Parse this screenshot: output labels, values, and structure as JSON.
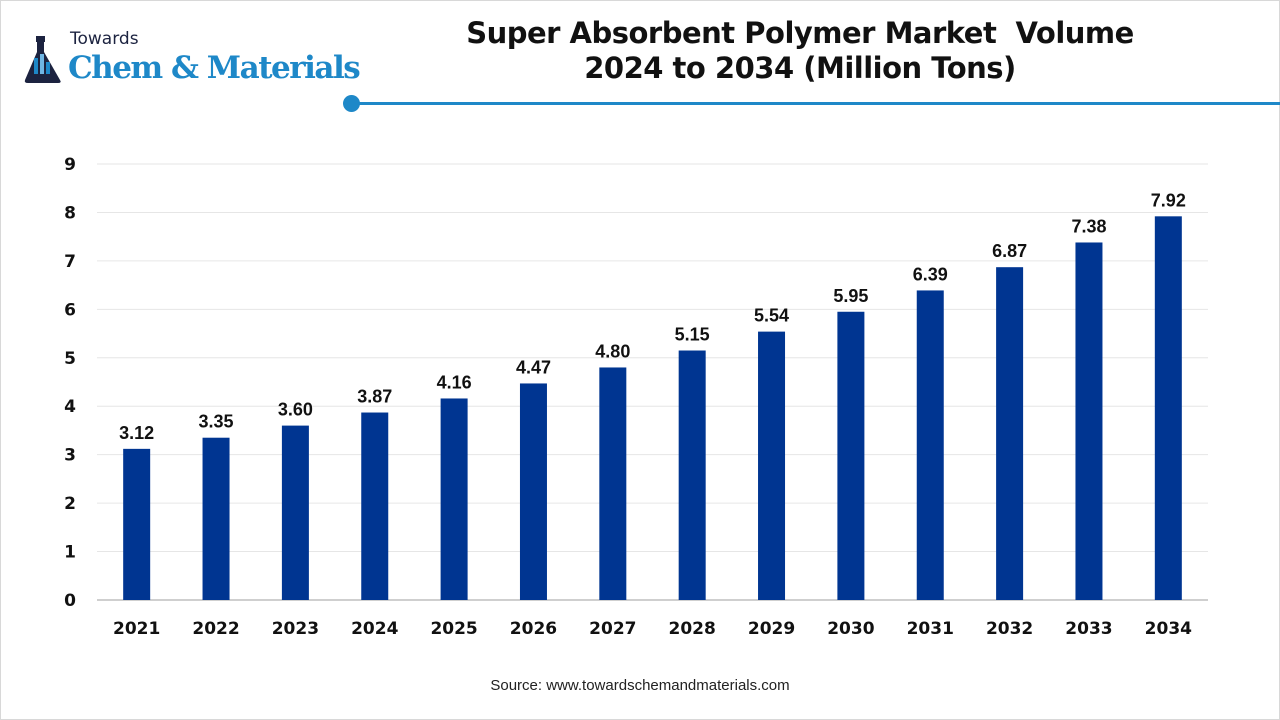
{
  "header": {
    "logo_small": "Towards",
    "logo_main": "Chem & Materials",
    "title_line1": "Super Absorbent Polymer Market  Volume",
    "title_line2": "2024 to 2034 (Million Tons)"
  },
  "source": "Source: www.towardschemandmaterials.com",
  "colors": {
    "bar": "#003591",
    "accent": "#1e88c8",
    "grid": "#e6e6e6",
    "axis": "#bfbfbf"
  },
  "chart_data": {
    "type": "bar",
    "title": "Super Absorbent Polymer Market  Volume 2024 to 2034 (Million Tons)",
    "categories": [
      "2021",
      "2022",
      "2023",
      "2024",
      "2025",
      "2026",
      "2027",
      "2028",
      "2029",
      "2030",
      "2031",
      "2032",
      "2033",
      "2034"
    ],
    "values": [
      3.12,
      3.35,
      3.6,
      3.87,
      4.16,
      4.47,
      4.8,
      5.15,
      5.54,
      5.95,
      6.39,
      6.87,
      7.38,
      7.92
    ],
    "value_labels": [
      "3.12",
      "3.35",
      "3.60",
      "3.87",
      "4.16",
      "4.47",
      "4.80",
      "5.15",
      "5.54",
      "5.95",
      "6.39",
      "6.87",
      "7.38",
      "7.92"
    ],
    "ylim": [
      0,
      9
    ],
    "yticks": [
      "0",
      "1",
      "2",
      "3",
      "4",
      "5",
      "6",
      "7",
      "8",
      "9"
    ],
    "grid": true,
    "legend": "none",
    "xlabel": "",
    "ylabel": ""
  }
}
